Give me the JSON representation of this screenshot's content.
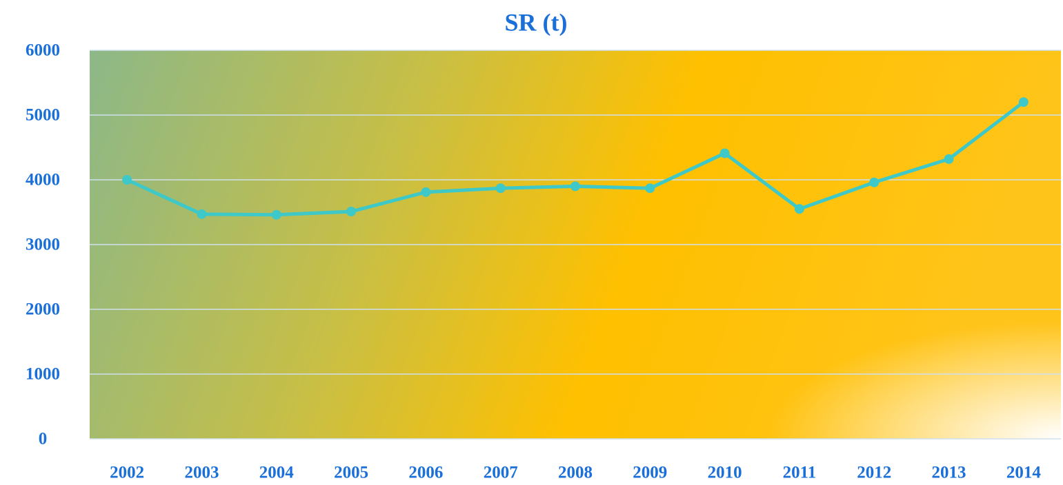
{
  "chart_data": {
    "type": "line",
    "title": "SR (t)",
    "categories": [
      "2002",
      "2003",
      "2004",
      "2005",
      "2006",
      "2007",
      "2008",
      "2009",
      "2010",
      "2011",
      "2012",
      "2013",
      "2014"
    ],
    "series": [
      {
        "name": "SR (t)",
        "color": "#3ec8c8",
        "values": [
          4000,
          3470,
          3460,
          3510,
          3810,
          3870,
          3900,
          3870,
          4410,
          3550,
          3960,
          4320,
          5200
        ]
      }
    ],
    "ylim": [
      0,
      6000
    ],
    "yticks": [
      0,
      1000,
      2000,
      3000,
      4000,
      5000,
      6000
    ],
    "grid": true
  }
}
